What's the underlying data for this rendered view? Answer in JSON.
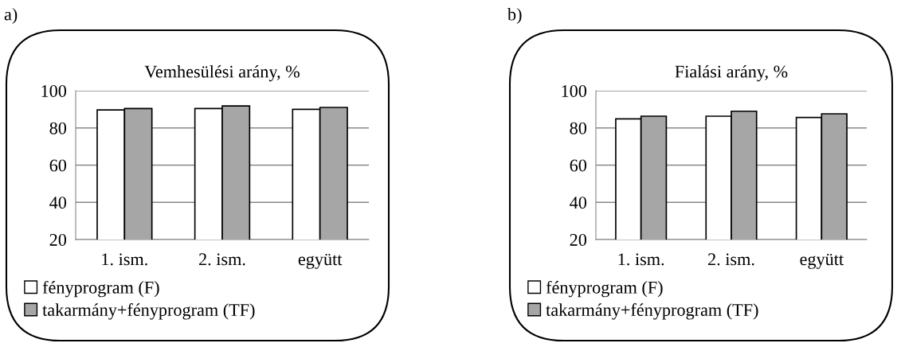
{
  "chart_data": [
    {
      "type": "bar",
      "title": "Vemhesülési arány, %",
      "categories": [
        "1. ism.",
        "2. ism.",
        "együtt"
      ],
      "series": [
        {
          "name": "fényprogram (F)",
          "color": "#ffffff",
          "values": [
            89.7,
            90.4,
            90.0
          ]
        },
        {
          "name": "takarmány+fényprogram (TF)",
          "color": "#a6a6a6",
          "values": [
            90.4,
            91.8,
            91.0
          ]
        }
      ],
      "ylim": [
        20,
        100
      ],
      "yticks": [
        20,
        40,
        60,
        80,
        100
      ],
      "grid": "y",
      "legend": "bottom",
      "annotations": [
        "a)"
      ]
    },
    {
      "type": "bar",
      "title": "Fialási arány, %",
      "categories": [
        "1. ism.",
        "2. ism.",
        "együtt"
      ],
      "series": [
        {
          "name": "fényprogram (F)",
          "color": "#ffffff",
          "values": [
            84.9,
            86.3,
            85.6
          ]
        },
        {
          "name": "takarmány+fényprogram (TF)",
          "color": "#a6a6a6",
          "values": [
            86.3,
            89.0,
            87.6
          ]
        }
      ],
      "ylim": [
        20,
        100
      ],
      "yticks": [
        20,
        40,
        60,
        80,
        100
      ],
      "grid": "y",
      "legend": "bottom",
      "annotations": [
        "b)"
      ]
    }
  ]
}
